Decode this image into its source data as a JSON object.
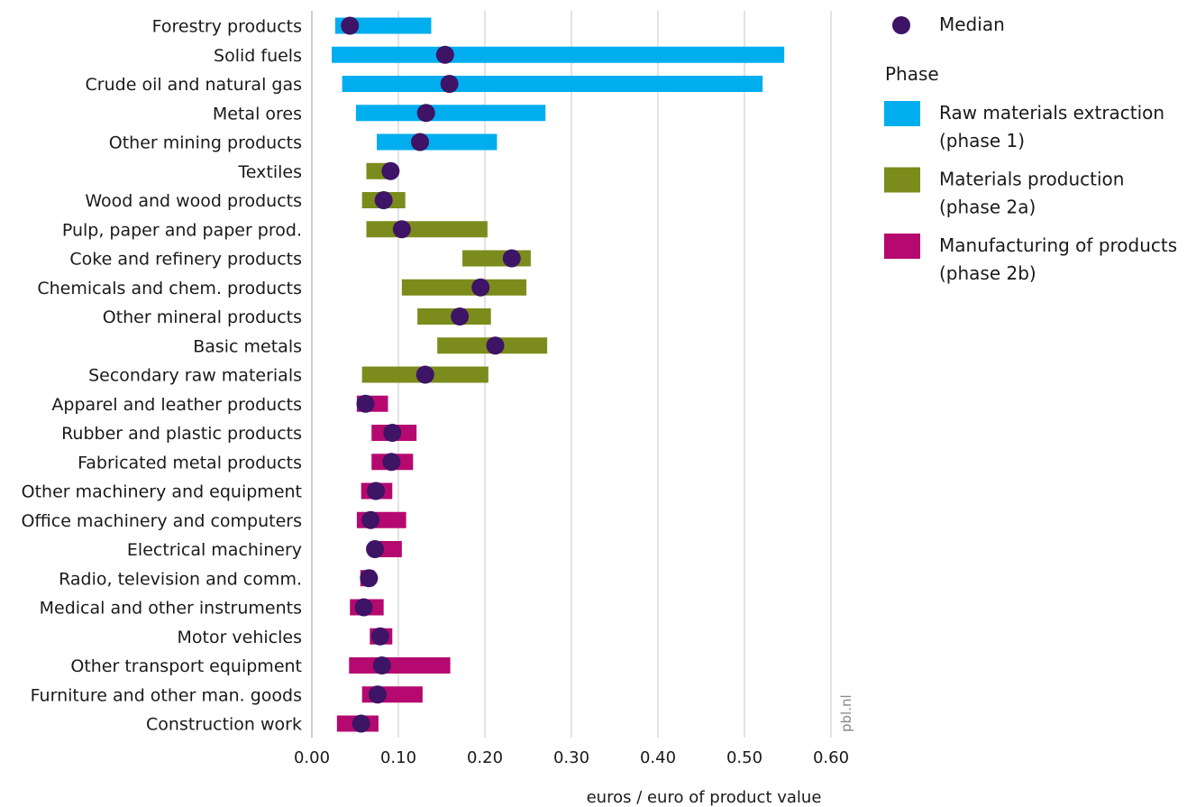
{
  "chart_data": {
    "type": "bar",
    "orientation": "horizontal-range",
    "xlabel": "euros / euro of product value",
    "xlim": [
      0,
      0.6
    ],
    "xticks": [
      "0.00",
      "0.10",
      "0.20",
      "0.30",
      "0.40",
      "0.50",
      "0.60"
    ],
    "grid": true,
    "watermark": "pbl.nl",
    "legend": {
      "placement": "right",
      "median_label": "Median",
      "title": "Phase",
      "items": [
        {
          "key": "phase1",
          "line1": "Raw materials extraction",
          "line2": "(phase 1)",
          "color": "#00aeef"
        },
        {
          "key": "phase2a",
          "line1": "Materials production",
          "line2": "(phase 2a)",
          "color": "#7b8c1c"
        },
        {
          "key": "phase2b",
          "line1": "Manufacturing of products",
          "line2": "(phase 2b)",
          "color": "#b5096f"
        }
      ]
    },
    "median_color": "#3d1466",
    "rows": [
      {
        "label": "Forestry products",
        "phase": "phase1",
        "min": 0.027,
        "max": 0.138,
        "median": 0.044
      },
      {
        "label": "Solid fuels",
        "phase": "phase1",
        "min": 0.023,
        "max": 0.546,
        "median": 0.154
      },
      {
        "label": "Crude oil and natural gas",
        "phase": "phase1",
        "min": 0.035,
        "max": 0.521,
        "median": 0.159
      },
      {
        "label": "Metal ores",
        "phase": "phase1",
        "min": 0.051,
        "max": 0.27,
        "median": 0.132
      },
      {
        "label": "Other mining products",
        "phase": "phase1",
        "min": 0.075,
        "max": 0.214,
        "median": 0.125
      },
      {
        "label": "Textiles",
        "phase": "phase2a",
        "min": 0.063,
        "max": 0.092,
        "median": 0.091
      },
      {
        "label": "Wood and wood products",
        "phase": "phase2a",
        "min": 0.058,
        "max": 0.108,
        "median": 0.083
      },
      {
        "label": "Pulp, paper and paper prod.",
        "phase": "phase2a",
        "min": 0.063,
        "max": 0.203,
        "median": 0.104
      },
      {
        "label": "Coke and refinery products",
        "phase": "phase2a",
        "min": 0.174,
        "max": 0.253,
        "median": 0.231
      },
      {
        "label": "Chemicals and chem. products",
        "phase": "phase2a",
        "min": 0.104,
        "max": 0.248,
        "median": 0.195
      },
      {
        "label": "Other mineral products",
        "phase": "phase2a",
        "min": 0.122,
        "max": 0.207,
        "median": 0.171
      },
      {
        "label": "Basic metals",
        "phase": "phase2a",
        "min": 0.145,
        "max": 0.272,
        "median": 0.212
      },
      {
        "label": "Secondary raw materials",
        "phase": "phase2a",
        "min": 0.058,
        "max": 0.204,
        "median": 0.131
      },
      {
        "label": "Apparel and leather products",
        "phase": "phase2b",
        "min": 0.052,
        "max": 0.088,
        "median": 0.062
      },
      {
        "label": "Rubber and plastic products",
        "phase": "phase2b",
        "min": 0.069,
        "max": 0.121,
        "median": 0.093
      },
      {
        "label": "Fabricated metal products",
        "phase": "phase2b",
        "min": 0.069,
        "max": 0.117,
        "median": 0.092
      },
      {
        "label": "Other machinery and equipment",
        "phase": "phase2b",
        "min": 0.057,
        "max": 0.093,
        "median": 0.074
      },
      {
        "label": "Office machinery and computers",
        "phase": "phase2b",
        "min": 0.052,
        "max": 0.109,
        "median": 0.068
      },
      {
        "label": "Electrical machinery",
        "phase": "phase2b",
        "min": 0.07,
        "max": 0.104,
        "median": 0.073
      },
      {
        "label": "Radio, television and comm.",
        "phase": "phase2b",
        "min": 0.056,
        "max": 0.072,
        "median": 0.066
      },
      {
        "label": "Medical and other instruments",
        "phase": "phase2b",
        "min": 0.044,
        "max": 0.083,
        "median": 0.06
      },
      {
        "label": "Motor vehicles",
        "phase": "phase2b",
        "min": 0.067,
        "max": 0.093,
        "median": 0.079
      },
      {
        "label": "Other transport equipment",
        "phase": "phase2b",
        "min": 0.043,
        "max": 0.16,
        "median": 0.081
      },
      {
        "label": "Furniture and other man. goods",
        "phase": "phase2b",
        "min": 0.058,
        "max": 0.128,
        "median": 0.076
      },
      {
        "label": "Construction work",
        "phase": "phase2b",
        "min": 0.029,
        "max": 0.077,
        "median": 0.057
      }
    ]
  }
}
